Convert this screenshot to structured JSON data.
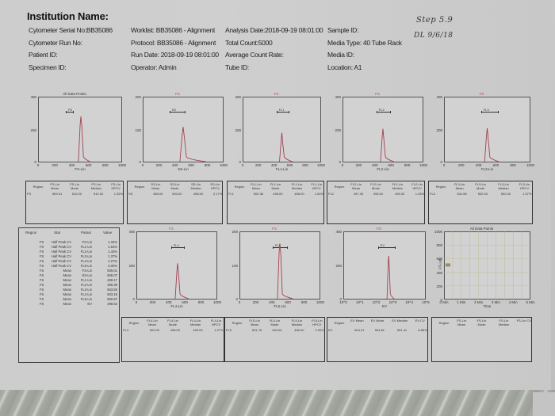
{
  "header": {
    "title": "Institution Name:",
    "col1": [
      "Cytometer Serial No:BB35086",
      "Cytometer Run No:",
      "Patient ID:",
      "Specimen ID:"
    ],
    "col2": [
      "Worklist: BB35086 - Alignment",
      "Protocol: BB35086 - Alignment",
      "Run Date: 2018-09-19 08:01:00",
      "Operator: Admin"
    ],
    "col3": [
      "Analysis Date:2018-09-19 08:01:00",
      "Total Count:5000",
      "Average Count Rate:",
      "Tube ID:"
    ],
    "col4": [
      "Sample ID:",
      "Media Type: 40 Tube Rack",
      "Media ID:",
      "Location: A1"
    ]
  },
  "handwritten": {
    "line1": "Step 5.9",
    "line2": "DL 9/6/18"
  },
  "panels": [
    {
      "title": "All Data Points",
      "gate": "FS",
      "xlabel": "FS-Lin",
      "ymax": "400",
      "ymid": "200",
      "xticks": [
        "0",
        "200",
        "400",
        "600",
        "800",
        "1000"
      ],
      "stats": {
        "headers": [
          "Region",
          "FS-Lin Mean",
          "FS-Lin Mode",
          "FS-Lin Median",
          "FS-Lin HPCV"
        ],
        "row": [
          "FS",
          "509.01",
          "510.00",
          "510.00",
          "1.32%"
        ]
      }
    },
    {
      "title": "FS",
      "gate": "SS",
      "xlabel": "SS-Lin",
      "ymax": "200",
      "ymid": "100",
      "xticks": [
        "0",
        "200",
        "400",
        "600",
        "800",
        "1000"
      ],
      "stats": {
        "headers": [
          "Region",
          "SS-Lin Mean",
          "SS-Lin Mode",
          "SS-Lin Median",
          "SS-Lin HPCV"
        ],
        "row": [
          "SS",
          "498.00",
          "503.00",
          "498.00",
          "2.17%"
        ]
      }
    },
    {
      "title": "FS",
      "gate": "FL1",
      "xlabel": "FL1-Lin",
      "ymax": "400",
      "ymid": "200",
      "xticks": [
        "0",
        "200",
        "400",
        "600",
        "800",
        "1000"
      ],
      "stats": {
        "headers": [
          "Region",
          "FL1-Lin Mean",
          "FL1-Lin Mode",
          "FL1-Lin Median",
          "FL1-Lin HPCV"
        ],
        "row": [
          "FL1",
          "500.38",
          "498.00",
          "498.00",
          "1.54%"
        ]
      }
    },
    {
      "title": "FS",
      "gate": "FL2",
      "xlabel": "FL2-Lin",
      "ymax": "400",
      "ymid": "200",
      "xticks": [
        "0",
        "200",
        "400",
        "600",
        "800",
        "1000"
      ],
      "stats": {
        "headers": [
          "Region",
          "FL2-Lin Mean",
          "FL2-Lin Mode",
          "FL2-Lin Median",
          "FL2-Lin HPCV"
        ],
        "row": [
          "FL2",
          "497.39",
          "495.00",
          "495.00",
          "1.43%"
        ]
      }
    },
    {
      "title": "FS",
      "gate": "FL3",
      "xlabel": "FL3-Lin",
      "ymax": "400",
      "ymid": "200",
      "xticks": [
        "0",
        "200",
        "400",
        "600",
        "800",
        "1000"
      ],
      "stats": {
        "headers": [
          "Region",
          "FL3-Lin Mean",
          "FL3-Lin Mode",
          "FL3-Lin Median",
          "FL3-Lin HPCV"
        ],
        "row": [
          "FL3",
          "504.98",
          "502.00",
          "502.00",
          "1.37%"
        ]
      }
    },
    {
      "title": "FS",
      "gate": "FL4",
      "xlabel": "FL4-Lin",
      "ymax": "400",
      "ymid": "200",
      "xticks": [
        "0",
        "200",
        "400",
        "600",
        "800",
        "1000"
      ],
      "stats": {
        "headers": [
          "Region",
          "FL4-Lin Mean",
          "FL4-Lin Mode",
          "FL4-Lin Median",
          "FL4-Lin HPCV"
        ],
        "row": [
          "FL4",
          "502.00",
          "498.00",
          "499.00",
          "1.27%"
        ]
      }
    },
    {
      "title": "FS",
      "gate": "FL5",
      "xlabel": "FL5-Lin",
      "ymax": "200",
      "ymid": "100",
      "xticks": [
        "0",
        "200",
        "400",
        "600",
        "800",
        "1000"
      ],
      "stats": {
        "headers": [
          "Region",
          "FL5-Lin Mean",
          "FL5-Lin Mode",
          "FL5-Lin Median",
          "FL5-Lin HPCV"
        ],
        "row": [
          "FL5",
          "501.76",
          "494.00",
          "496.00",
          "2.00%"
        ]
      }
    },
    {
      "title": "FS",
      "gate": "EV",
      "xlabel": "EV",
      "ymax": "400",
      "ymid": "200",
      "xticks": [
        "10^0",
        "10^1",
        "10^2",
        "10^3",
        "10^4",
        "10^5"
      ],
      "stats": {
        "headers": [
          "Region",
          "EV Mean",
          "EV Mode",
          "EV Median",
          "EV CV"
        ],
        "row": [
          "EV",
          "504.21",
          "504.81",
          "501.41",
          "8.85%"
        ]
      }
    },
    {
      "title": "All Data Points",
      "gate": "",
      "xlabel": "Time",
      "ylabel": "FS-Lin",
      "yticks": [
        "1000",
        "800",
        "600",
        "400",
        "200",
        "0"
      ],
      "xticks": [
        "0 Min",
        "1 Min",
        "2 Min",
        "3 Min",
        "4 Min",
        "5 Min"
      ],
      "stats": {
        "headers": [
          "Region",
          "FS-Lin Mean",
          "FS-Lin Mode",
          "FS-Lin Median",
          "FS-Lin CV"
        ],
        "row": []
      }
    }
  ],
  "summary": {
    "headers": [
      "Region",
      "Stat",
      "Param",
      "Value"
    ],
    "rows": [
      [
        "FS",
        "Half Peak CV",
        "FS-Lin",
        "1.32%"
      ],
      [
        "FS",
        "Half Peak CV",
        "FL1-Lin",
        "1.54%"
      ],
      [
        "FS",
        "Half Peak CV",
        "FL2-Lin",
        "1.43%"
      ],
      [
        "FS",
        "Half Peak CV",
        "FL3-Lin",
        "1.37%"
      ],
      [
        "FS",
        "Half Peak CV",
        "FL4-Lin",
        "1.27%"
      ],
      [
        "FS",
        "Half Peak CV",
        "FL5-Lin",
        "2.00%"
      ],
      [
        "FS",
        "Mean",
        "FS-Lin",
        "509.01"
      ],
      [
        "FS",
        "Mean",
        "SS-Lin",
        "508.07"
      ],
      [
        "FS",
        "Mean",
        "FL1-Lin",
        "499.17"
      ],
      [
        "FS",
        "Mean",
        "FL2-Lin",
        "496.39"
      ],
      [
        "FS",
        "Mean",
        "FL3-Lin",
        "503.50"
      ],
      [
        "FS",
        "Mean",
        "FL4-Lin",
        "503.19"
      ],
      [
        "FS",
        "Mean",
        "FL5-Lin",
        "500.97"
      ],
      [
        "FS",
        "Mean",
        "EV",
        "498.52"
      ]
    ]
  },
  "colors": {
    "trace": "#c0485a",
    "paper": "#cfcfcf",
    "border": "#333333"
  }
}
